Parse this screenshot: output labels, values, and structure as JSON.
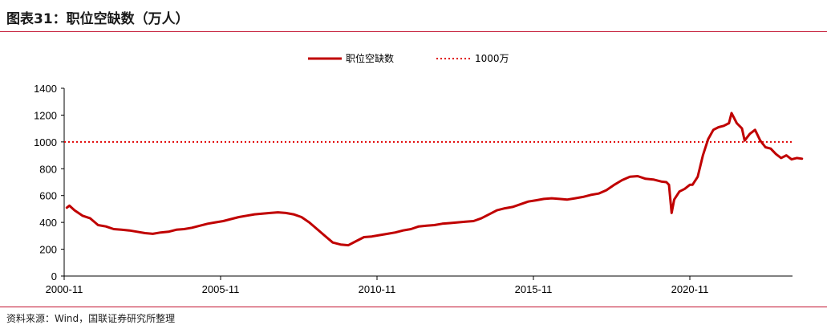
{
  "header": {
    "title": "图表31：职位空缺数（万人）"
  },
  "footer": {
    "source": "资料来源：Wind，国联证券研究所整理"
  },
  "chart_data": {
    "type": "line",
    "ylim": [
      0,
      1400
    ],
    "yticks": [
      0,
      200,
      400,
      600,
      800,
      1000,
      1200,
      1400
    ],
    "xticks": [
      "2000-11",
      "2005-11",
      "2010-11",
      "2015-11",
      "2020-11"
    ],
    "grid": false,
    "legend_position": "top-center",
    "legend": [
      "职位空缺数",
      "1000万"
    ],
    "reference_line": {
      "name": "1000万",
      "value": 1000,
      "color": "#e00000",
      "style": "dotted"
    },
    "series": [
      {
        "name": "职位空缺数",
        "color": "#c00000",
        "points": [
          [
            "2000-12",
            510
          ],
          [
            "2001-01",
            525
          ],
          [
            "2001-03",
            490
          ],
          [
            "2001-06",
            450
          ],
          [
            "2001-09",
            430
          ],
          [
            "2001-12",
            380
          ],
          [
            "2002-03",
            370
          ],
          [
            "2002-06",
            350
          ],
          [
            "2002-09",
            345
          ],
          [
            "2002-12",
            340
          ],
          [
            "2003-03",
            330
          ],
          [
            "2003-06",
            320
          ],
          [
            "2003-09",
            315
          ],
          [
            "2003-12",
            325
          ],
          [
            "2004-03",
            330
          ],
          [
            "2004-06",
            345
          ],
          [
            "2004-09",
            350
          ],
          [
            "2004-12",
            360
          ],
          [
            "2005-03",
            375
          ],
          [
            "2005-06",
            390
          ],
          [
            "2005-09",
            400
          ],
          [
            "2005-12",
            410
          ],
          [
            "2006-03",
            425
          ],
          [
            "2006-06",
            440
          ],
          [
            "2006-09",
            450
          ],
          [
            "2006-12",
            460
          ],
          [
            "2007-03",
            465
          ],
          [
            "2007-06",
            470
          ],
          [
            "2007-09",
            475
          ],
          [
            "2007-12",
            470
          ],
          [
            "2008-03",
            460
          ],
          [
            "2008-06",
            440
          ],
          [
            "2008-09",
            400
          ],
          [
            "2008-12",
            350
          ],
          [
            "2009-03",
            300
          ],
          [
            "2009-06",
            250
          ],
          [
            "2009-09",
            235
          ],
          [
            "2009-12",
            230
          ],
          [
            "2010-03",
            260
          ],
          [
            "2010-06",
            290
          ],
          [
            "2010-09",
            295
          ],
          [
            "2010-12",
            305
          ],
          [
            "2011-03",
            315
          ],
          [
            "2011-06",
            325
          ],
          [
            "2011-09",
            340
          ],
          [
            "2011-12",
            350
          ],
          [
            "2012-03",
            370
          ],
          [
            "2012-06",
            375
          ],
          [
            "2012-09",
            380
          ],
          [
            "2012-12",
            390
          ],
          [
            "2013-03",
            395
          ],
          [
            "2013-06",
            400
          ],
          [
            "2013-09",
            405
          ],
          [
            "2013-12",
            410
          ],
          [
            "2014-03",
            430
          ],
          [
            "2014-06",
            460
          ],
          [
            "2014-09",
            490
          ],
          [
            "2014-12",
            505
          ],
          [
            "2015-03",
            515
          ],
          [
            "2015-06",
            535
          ],
          [
            "2015-09",
            555
          ],
          [
            "2015-12",
            565
          ],
          [
            "2016-03",
            575
          ],
          [
            "2016-06",
            580
          ],
          [
            "2016-09",
            575
          ],
          [
            "2016-12",
            570
          ],
          [
            "2017-03",
            580
          ],
          [
            "2017-06",
            590
          ],
          [
            "2017-09",
            605
          ],
          [
            "2017-12",
            615
          ],
          [
            "2018-03",
            640
          ],
          [
            "2018-06",
            680
          ],
          [
            "2018-09",
            715
          ],
          [
            "2018-12",
            740
          ],
          [
            "2019-03",
            745
          ],
          [
            "2019-06",
            725
          ],
          [
            "2019-09",
            720
          ],
          [
            "2019-12",
            705
          ],
          [
            "2020-02",
            700
          ],
          [
            "2020-03",
            680
          ],
          [
            "2020-04",
            470
          ],
          [
            "2020-05",
            570
          ],
          [
            "2020-07",
            630
          ],
          [
            "2020-09",
            650
          ],
          [
            "2020-11",
            680
          ],
          [
            "2020-12",
            680
          ],
          [
            "2021-02",
            740
          ],
          [
            "2021-04",
            900
          ],
          [
            "2021-06",
            1020
          ],
          [
            "2021-08",
            1090
          ],
          [
            "2021-10",
            1110
          ],
          [
            "2021-12",
            1120
          ],
          [
            "2022-02",
            1140
          ],
          [
            "2022-03",
            1215
          ],
          [
            "2022-05",
            1140
          ],
          [
            "2022-07",
            1100
          ],
          [
            "2022-08",
            1010
          ],
          [
            "2022-10",
            1060
          ],
          [
            "2022-12",
            1090
          ],
          [
            "2023-02",
            1010
          ],
          [
            "2023-04",
            960
          ],
          [
            "2023-06",
            950
          ],
          [
            "2023-08",
            910
          ],
          [
            "2023-10",
            880
          ],
          [
            "2023-12",
            900
          ],
          [
            "2024-02",
            870
          ],
          [
            "2024-04",
            880
          ],
          [
            "2024-06",
            875
          ]
        ]
      }
    ]
  }
}
